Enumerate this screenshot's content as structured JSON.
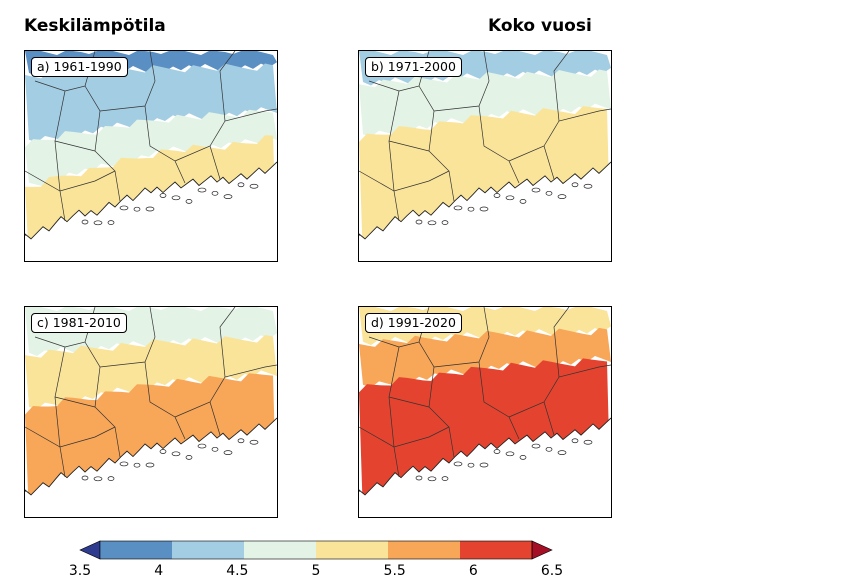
{
  "header": {
    "title_left": "Keskilämpötila",
    "title_right": "Koko vuosi"
  },
  "legend": {
    "ticks": [
      "3.5",
      "4",
      "4.5",
      "5",
      "5.5",
      "6",
      "6.5"
    ],
    "colors": [
      "#2f3b8e",
      "#5a8fc4",
      "#a3cde3",
      "#e3f3e6",
      "#fae49a",
      "#f8a658",
      "#e4442f",
      "#a50f26"
    ]
  },
  "panels": [
    {
      "label": "a) 1961-1990",
      "bands": [
        {
          "color": "#5a8fc4",
          "from": 0.0,
          "to": 0.13
        },
        {
          "color": "#a3cde3",
          "from": 0.13,
          "to": 0.5
        },
        {
          "color": "#e3f3e6",
          "from": 0.5,
          "to": 0.74
        },
        {
          "color": "#fae49a",
          "from": 0.74,
          "to": 1.0
        }
      ]
    },
    {
      "label": "b) 1971-2000",
      "bands": [
        {
          "color": "#a3cde3",
          "from": 0.0,
          "to": 0.18
        },
        {
          "color": "#e3f3e6",
          "from": 0.18,
          "to": 0.47
        },
        {
          "color": "#fae49a",
          "from": 0.47,
          "to": 1.0
        }
      ]
    },
    {
      "label": "c) 1981-2010",
      "bands": [
        {
          "color": "#e3f3e6",
          "from": 0.0,
          "to": 0.26
        },
        {
          "color": "#fae49a",
          "from": 0.26,
          "to": 0.56
        },
        {
          "color": "#f8a658",
          "from": 0.56,
          "to": 1.0
        }
      ]
    },
    {
      "label": "d) 1991-2020",
      "bands": [
        {
          "color": "#fae49a",
          "from": 0.0,
          "to": 0.2
        },
        {
          "color": "#f8a658",
          "from": 0.2,
          "to": 0.44
        },
        {
          "color": "#e4442f",
          "from": 0.44,
          "to": 1.0
        }
      ]
    }
  ]
}
